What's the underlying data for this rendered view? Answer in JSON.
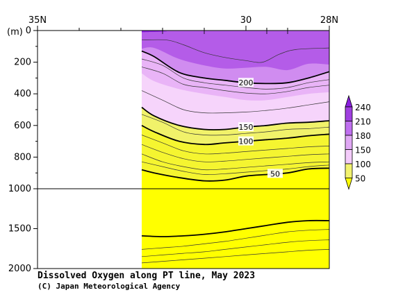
{
  "chart_data": {
    "type": "heatmap",
    "title": "Dissolved Oxygen along PT line, May 2023",
    "credit": "(C) Japan Meteorological Agency",
    "x_axis": {
      "range": [
        35,
        28
      ],
      "labeled_ticks": [
        {
          "value": 35,
          "label": "35N"
        },
        {
          "value": 30,
          "label": "30"
        },
        {
          "value": 28,
          "label": "28N"
        }
      ],
      "minor_ticks": [
        34,
        33,
        32,
        31,
        29.5,
        29
      ]
    },
    "y_axis": {
      "unit_label": "(m)",
      "upper_range": [
        0,
        1000
      ],
      "lower_range": [
        1000,
        2000
      ],
      "labeled_ticks": [
        {
          "value": 0,
          "label": "0"
        },
        {
          "value": 200,
          "label": "200"
        },
        {
          "value": 400,
          "label": "400"
        },
        {
          "value": 600,
          "label": "600"
        },
        {
          "value": 800,
          "label": "800"
        },
        {
          "value": 1000,
          "label": "1000"
        },
        {
          "value": 1500,
          "label": "1500"
        },
        {
          "value": 2000,
          "label": "2000"
        }
      ]
    },
    "data_extent_lat": [
      32.5,
      28
    ],
    "colorbar": {
      "levels": [
        {
          "value": 240,
          "label": "240",
          "color": "#a040e0"
        },
        {
          "value": 210,
          "label": "210",
          "color": "#c070f0"
        },
        {
          "value": 180,
          "label": "180",
          "color": "#e0a8f4"
        },
        {
          "value": 150,
          "label": "150",
          "color": "#f4ccfa"
        },
        {
          "value": 100,
          "label": "100",
          "color": "#f2f270"
        },
        {
          "value": 50,
          "label": "50",
          "color": "#ffff00"
        }
      ]
    },
    "bands": [
      {
        "range": ">240",
        "color": "#8a1ee0",
        "top": [
          [
            32.5,
            0
          ],
          [
            31.9,
            5
          ],
          [
            32.5,
            10
          ]
        ],
        "bottom": []
      },
      {
        "range": "210-240",
        "color": "#b45ce8",
        "top": [
          [
            32.5,
            0
          ],
          [
            28,
            0
          ]
        ],
        "bottom": [
          [
            32.5,
            115
          ],
          [
            32.2,
            110
          ],
          [
            31.6,
            180
          ],
          [
            31.0,
            220
          ],
          [
            30.5,
            240
          ],
          [
            30.0,
            235
          ],
          [
            29.5,
            230
          ],
          [
            29.0,
            250
          ],
          [
            28.5,
            210
          ],
          [
            28,
            215
          ]
        ]
      },
      {
        "range": "180-210",
        "color": "#d08cf0",
        "bottom": [
          [
            32.5,
            130
          ],
          [
            32.2,
            165
          ],
          [
            31.6,
            265
          ],
          [
            31.0,
            300
          ],
          [
            30.5,
            315
          ],
          [
            30.0,
            330
          ],
          [
            29.5,
            335
          ],
          [
            29.0,
            330
          ],
          [
            28.5,
            300
          ],
          [
            28,
            260
          ]
        ]
      },
      {
        "range": "150-180",
        "color": "#e9b4f7",
        "bottom": [
          [
            32.5,
            270
          ],
          [
            32.2,
            320
          ],
          [
            31.6,
            370
          ],
          [
            31.0,
            400
          ],
          [
            30.5,
            420
          ],
          [
            30.0,
            440
          ],
          [
            29.5,
            440
          ],
          [
            29.0,
            420
          ],
          [
            28.5,
            400
          ],
          [
            28,
            390
          ]
        ]
      },
      {
        "range": "120-150",
        "color": "#f6d4fb",
        "bottom": [
          [
            32.5,
            485
          ],
          [
            32.2,
            540
          ],
          [
            31.6,
            600
          ],
          [
            31.0,
            625
          ],
          [
            30.5,
            625
          ],
          [
            30.0,
            610
          ],
          [
            29.5,
            600
          ],
          [
            29.0,
            585
          ],
          [
            28.5,
            580
          ],
          [
            28,
            570
          ]
        ]
      },
      {
        "range": "100-120",
        "color": "#f1f26a",
        "bottom": [
          [
            32.5,
            600
          ],
          [
            32.2,
            640
          ],
          [
            31.6,
            700
          ],
          [
            31.0,
            720
          ],
          [
            30.5,
            710
          ],
          [
            30.0,
            700
          ],
          [
            29.5,
            690
          ],
          [
            29.0,
            680
          ],
          [
            28.5,
            665
          ],
          [
            28,
            655
          ]
        ]
      },
      {
        "range": "50-100",
        "color": "#f5f530",
        "bottom": [
          [
            32.5,
            880
          ],
          [
            32.2,
            900
          ],
          [
            31.6,
            930
          ],
          [
            31.0,
            950
          ],
          [
            30.5,
            945
          ],
          [
            30.0,
            920
          ],
          [
            29.5,
            910
          ],
          [
            29.0,
            900
          ],
          [
            28.5,
            875
          ],
          [
            28,
            870
          ]
        ]
      },
      {
        "range": "<50",
        "color": "#ffff00",
        "bottom": [
          [
            32.5,
            2000
          ],
          [
            28,
            2000
          ]
        ]
      }
    ],
    "contours": [
      {
        "level": 200,
        "label": "200",
        "bold": true,
        "label_at": [
          30.0,
          330
        ],
        "points": [
          [
            32.5,
            130
          ],
          [
            32.2,
            165
          ],
          [
            31.6,
            265
          ],
          [
            31.0,
            300
          ],
          [
            30.5,
            315
          ],
          [
            30.0,
            330
          ],
          [
            29.5,
            335
          ],
          [
            29.0,
            330
          ],
          [
            28.5,
            300
          ],
          [
            28,
            260
          ]
        ]
      },
      {
        "level": 150,
        "label": "150",
        "bold": true,
        "label_at": [
          30.0,
          610
        ],
        "points": [
          [
            32.5,
            485
          ],
          [
            32.2,
            540
          ],
          [
            31.6,
            600
          ],
          [
            31.0,
            625
          ],
          [
            30.5,
            625
          ],
          [
            30.0,
            610
          ],
          [
            29.5,
            600
          ],
          [
            29.0,
            585
          ],
          [
            28.5,
            580
          ],
          [
            28,
            570
          ]
        ]
      },
      {
        "level": 100,
        "label": "100",
        "bold": true,
        "label_at": [
          30.0,
          700
        ],
        "points": [
          [
            32.5,
            600
          ],
          [
            32.2,
            640
          ],
          [
            31.6,
            700
          ],
          [
            31.0,
            720
          ],
          [
            30.5,
            710
          ],
          [
            30.0,
            700
          ],
          [
            29.5,
            690
          ],
          [
            29.0,
            680
          ],
          [
            28.5,
            665
          ],
          [
            28,
            655
          ]
        ]
      },
      {
        "level": 50,
        "label": "50",
        "bold": true,
        "label_at": [
          29.3,
          905
        ],
        "points": [
          [
            32.5,
            880
          ],
          [
            32.2,
            900
          ],
          [
            31.6,
            930
          ],
          [
            31.0,
            950
          ],
          [
            30.5,
            945
          ],
          [
            30.0,
            920
          ],
          [
            29.5,
            910
          ],
          [
            29.0,
            900
          ],
          [
            28.5,
            875
          ],
          [
            28,
            870
          ]
        ]
      },
      {
        "level": 50,
        "label": "",
        "bold": true,
        "points": [
          [
            32.5,
            1590
          ],
          [
            32.0,
            1600
          ],
          [
            31.5,
            1590
          ],
          [
            31.0,
            1570
          ],
          [
            30.5,
            1540
          ],
          [
            30.0,
            1500
          ],
          [
            29.5,
            1460
          ],
          [
            29.0,
            1420
          ],
          [
            28.5,
            1400
          ],
          [
            28,
            1400
          ]
        ]
      }
    ],
    "thin_contours": [
      [
        [
          32.5,
          60
        ],
        [
          31.9,
          60
        ],
        [
          31.5,
          90
        ],
        [
          31.0,
          140
        ],
        [
          30.5,
          170
        ],
        [
          30.0,
          190
        ],
        [
          29.6,
          200
        ],
        [
          29.2,
          150
        ],
        [
          28.8,
          120
        ],
        [
          28,
          110
        ]
      ],
      [
        [
          32.5,
          180
        ],
        [
          32.0,
          220
        ],
        [
          31.5,
          300
        ],
        [
          31.0,
          330
        ],
        [
          30.5,
          345
        ],
        [
          30.0,
          360
        ],
        [
          29.5,
          370
        ],
        [
          29.0,
          360
        ],
        [
          28.5,
          330
        ],
        [
          28,
          310
        ]
      ],
      [
        [
          32.5,
          230
        ],
        [
          32.0,
          270
        ],
        [
          31.5,
          340
        ],
        [
          31.0,
          360
        ],
        [
          30.5,
          380
        ],
        [
          30.0,
          395
        ],
        [
          29.5,
          400
        ],
        [
          29.0,
          385
        ],
        [
          28.5,
          360
        ],
        [
          28,
          345
        ]
      ],
      [
        [
          32.5,
          380
        ],
        [
          32.0,
          440
        ],
        [
          31.5,
          500
        ],
        [
          31.0,
          520
        ],
        [
          30.5,
          520
        ],
        [
          30.0,
          515
        ],
        [
          29.5,
          505
        ],
        [
          29.0,
          490
        ],
        [
          28.5,
          470
        ],
        [
          28,
          450
        ]
      ],
      [
        [
          32.5,
          530
        ],
        [
          32.0,
          580
        ],
        [
          31.5,
          640
        ],
        [
          31.0,
          660
        ],
        [
          30.5,
          660
        ],
        [
          30.0,
          650
        ],
        [
          29.5,
          640
        ],
        [
          29.0,
          625
        ],
        [
          28.5,
          620
        ],
        [
          28,
          610
        ]
      ],
      [
        [
          32.5,
          660
        ],
        [
          32.0,
          710
        ],
        [
          31.5,
          760
        ],
        [
          31.0,
          780
        ],
        [
          30.5,
          775
        ],
        [
          30.0,
          765
        ],
        [
          29.5,
          755
        ],
        [
          29.0,
          745
        ],
        [
          28.5,
          735
        ],
        [
          28,
          730
        ]
      ],
      [
        [
          32.5,
          720
        ],
        [
          32.0,
          770
        ],
        [
          31.5,
          810
        ],
        [
          31.0,
          830
        ],
        [
          30.5,
          825
        ],
        [
          30.0,
          815
        ],
        [
          29.5,
          805
        ],
        [
          29.0,
          795
        ],
        [
          28.5,
          785
        ],
        [
          28,
          780
        ]
      ],
      [
        [
          32.5,
          780
        ],
        [
          32.0,
          830
        ],
        [
          31.5,
          860
        ],
        [
          31.0,
          880
        ],
        [
          30.5,
          875
        ],
        [
          30.0,
          865
        ],
        [
          29.5,
          855
        ],
        [
          29.0,
          845
        ],
        [
          28.5,
          835
        ],
        [
          28,
          830
        ]
      ],
      [
        [
          32.5,
          830
        ],
        [
          32.0,
          860
        ],
        [
          31.5,
          890
        ],
        [
          31.0,
          910
        ],
        [
          30.5,
          905
        ],
        [
          30.0,
          895
        ],
        [
          29.5,
          885
        ],
        [
          29.0,
          875
        ],
        [
          28.5,
          860
        ],
        [
          28,
          850
        ]
      ],
      [
        [
          32.5,
          1760
        ],
        [
          32.0,
          1740
        ],
        [
          31.5,
          1720
        ],
        [
          31.0,
          1690
        ],
        [
          30.5,
          1660
        ],
        [
          30.0,
          1620
        ],
        [
          29.5,
          1580
        ],
        [
          29.0,
          1540
        ],
        [
          28.5,
          1520
        ],
        [
          28,
          1510
        ]
      ],
      [
        [
          32.5,
          1850
        ],
        [
          32.0,
          1830
        ],
        [
          31.5,
          1810
        ],
        [
          31.0,
          1790
        ],
        [
          30.5,
          1760
        ],
        [
          30.0,
          1730
        ],
        [
          29.5,
          1700
        ],
        [
          29.0,
          1670
        ],
        [
          28.5,
          1650
        ],
        [
          28,
          1640
        ]
      ],
      [
        [
          32.5,
          1930
        ],
        [
          32.0,
          1910
        ],
        [
          31.5,
          1890
        ],
        [
          31.0,
          1870
        ],
        [
          30.5,
          1850
        ],
        [
          30.0,
          1830
        ],
        [
          29.5,
          1810
        ],
        [
          29.0,
          1790
        ],
        [
          28.5,
          1770
        ],
        [
          28,
          1760
        ]
      ]
    ]
  }
}
